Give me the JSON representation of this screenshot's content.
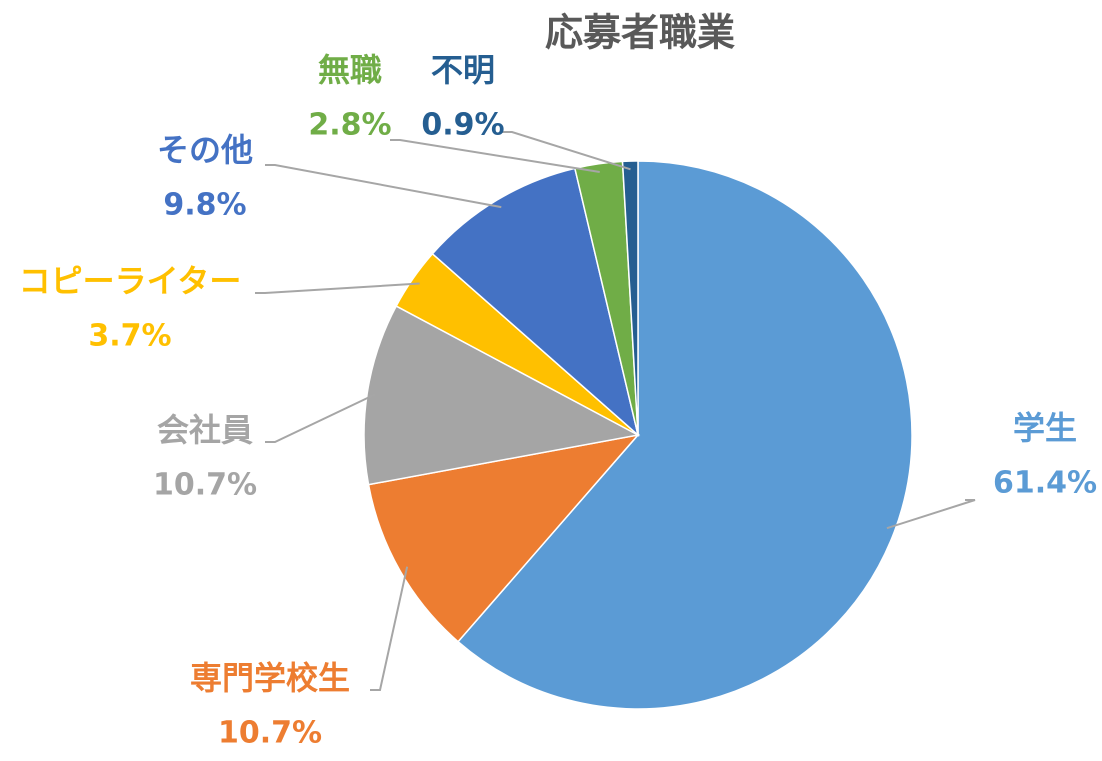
{
  "chart_data": {
    "type": "pie",
    "title": "応募者職業",
    "categories": [
      "学生",
      "専門学校生",
      "会社員",
      "コピーライター",
      "その他",
      "無職",
      "不明"
    ],
    "values": [
      61.4,
      10.7,
      10.7,
      3.7,
      9.8,
      2.8,
      0.9
    ],
    "value_labels": [
      "61.4%",
      "10.7%",
      "10.7%",
      "3.7%",
      "9.8%",
      "2.8%",
      "0.9%"
    ],
    "colors": [
      "#5b9bd5",
      "#ed7d31",
      "#a5a5a5",
      "#ffc000",
      "#4472c4",
      "#70ad47",
      "#255e91"
    ]
  }
}
